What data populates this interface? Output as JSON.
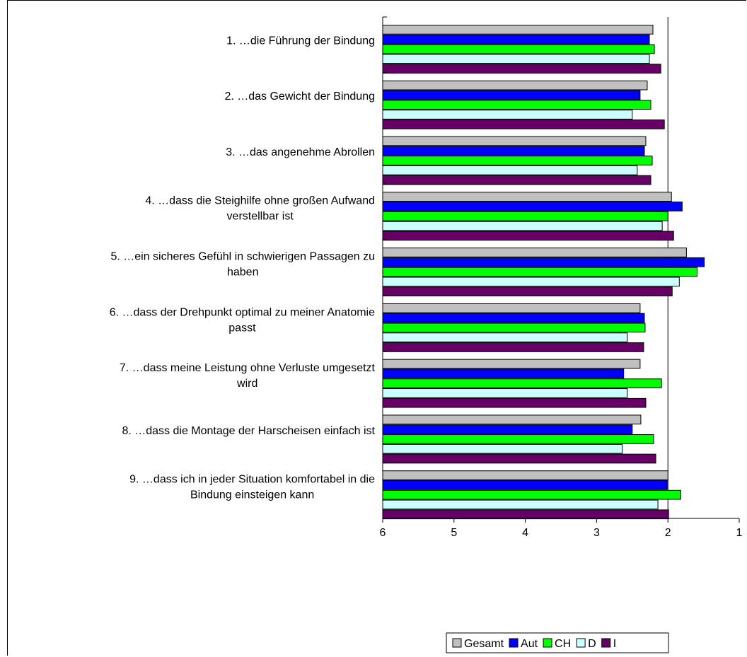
{
  "chart_data": {
    "type": "bar",
    "orientation": "horizontal",
    "x_axis_reversed": true,
    "xlim": [
      1,
      6
    ],
    "xticks": [
      "6",
      "5",
      "4",
      "3",
      "2",
      "1"
    ],
    "grid": "vertical-at-2",
    "legend_placement": "bottom-right",
    "categories": [
      [
        "1. …die Führung der Bindung"
      ],
      [
        "2. …das Gewicht der Bindung"
      ],
      [
        "3. …das angenehme Abrollen"
      ],
      [
        "4. …dass die Steighilfe ohne großen Aufwand",
        "verstellbar ist"
      ],
      [
        "5. …ein sicheres Gefühl in schwierigen Passagen zu",
        "haben"
      ],
      [
        "6. …dass der Drehpunkt optimal zu meiner Anatomie",
        "passt"
      ],
      [
        "7. …dass meine Leistung ohne Verluste umgesetzt",
        "wird"
      ],
      [
        "8. …dass die Montage der Harscheisen einfach ist"
      ],
      [
        "9. …dass ich in jeder Situation komfortabel in die",
        "Bindung einsteigen kann"
      ]
    ],
    "series": [
      {
        "name": "Gesamt",
        "color": "#c0c0c0",
        "values": [
          2.21,
          2.29,
          2.31,
          1.95,
          1.74,
          2.39,
          2.39,
          2.38,
          2.0
        ]
      },
      {
        "name": "Aut",
        "color": "#0000ff",
        "values": [
          2.26,
          2.39,
          2.33,
          1.8,
          1.49,
          2.33,
          2.62,
          2.5,
          2.01
        ]
      },
      {
        "name": "CH",
        "color": "#00ff00",
        "values": [
          2.19,
          2.24,
          2.22,
          2.0,
          1.59,
          2.32,
          2.09,
          2.2,
          1.82
        ]
      },
      {
        "name": "D",
        "color": "#ccffff",
        "values": [
          2.26,
          2.5,
          2.43,
          2.08,
          1.84,
          2.57,
          2.57,
          2.64,
          2.14
        ]
      },
      {
        "name": "I",
        "color": "#660066",
        "values": [
          2.1,
          2.05,
          2.24,
          1.92,
          1.94,
          2.34,
          2.31,
          2.17,
          1.99
        ]
      }
    ]
  }
}
